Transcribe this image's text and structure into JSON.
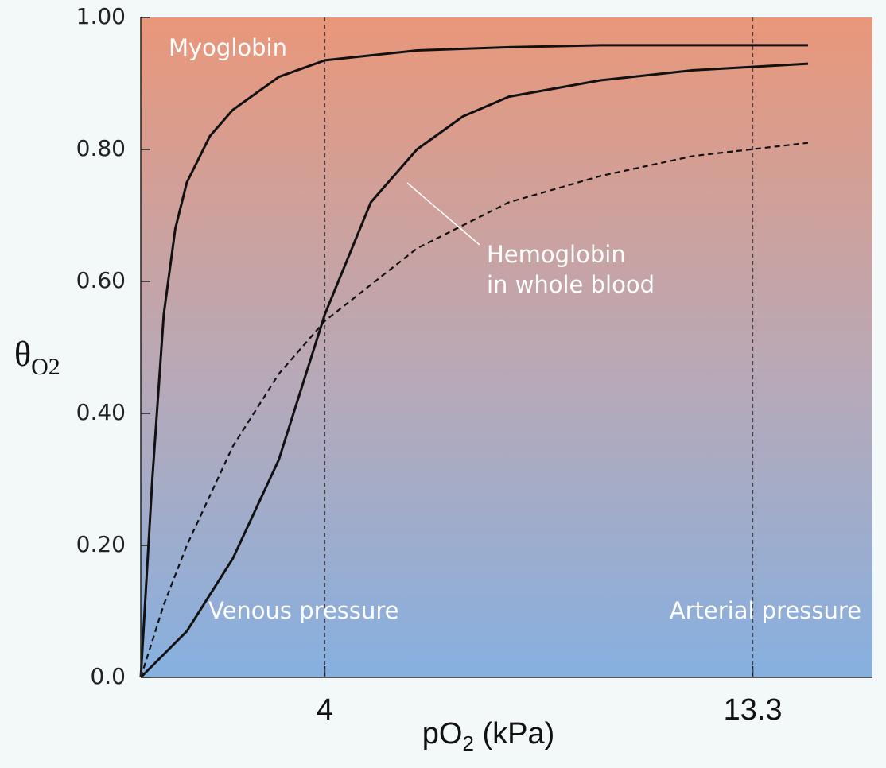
{
  "chart_data": {
    "type": "line",
    "x_label": [
      "pO",
      "2",
      " (kPa)"
    ],
    "y_label": "θ",
    "y_label_sub": "O2",
    "xlim": [
      0,
      15.9
    ],
    "ylim": [
      0,
      1.0
    ],
    "xticks": [
      4,
      13.3
    ],
    "yticks": [
      {
        "value": 0,
        "label": "0.0"
      },
      {
        "value": 0.2,
        "label": "0.20"
      },
      {
        "value": 0.4,
        "label": "0.40"
      },
      {
        "value": 0.6,
        "label": "0.60"
      },
      {
        "value": 0.8,
        "label": "0.80"
      },
      {
        "value": 1.0,
        "label": "1.00"
      }
    ],
    "vlines": [
      {
        "x": 4,
        "label": "Venous pressure"
      },
      {
        "x": 13.3,
        "label": "Arterial pressure"
      }
    ],
    "series": [
      {
        "name": "Myoglobin",
        "color": "#111111",
        "dash": false,
        "x": [
          0,
          0.25,
          0.5,
          0.75,
          1,
          1.5,
          2,
          3,
          4,
          6,
          8,
          10,
          12,
          14.5
        ],
        "values": [
          0,
          0.3,
          0.55,
          0.68,
          0.75,
          0.82,
          0.86,
          0.91,
          0.935,
          0.95,
          0.955,
          0.958,
          0.958,
          0.958
        ]
      },
      {
        "name": [
          "Hemoglobin",
          "in whole blood"
        ],
        "color": "#111111",
        "dash": false,
        "x": [
          0,
          1,
          2,
          3,
          4,
          5,
          6,
          7,
          8,
          10,
          12,
          14.5
        ],
        "values": [
          0,
          0.07,
          0.18,
          0.33,
          0.55,
          0.72,
          0.8,
          0.85,
          0.88,
          0.905,
          0.92,
          0.93
        ]
      },
      {
        "color": "#111111",
        "dash": true,
        "x": [
          0,
          0.5,
          1,
          2,
          3,
          4,
          6,
          8,
          10,
          12,
          14.5
        ],
        "values": [
          0,
          0.11,
          0.2,
          0.35,
          0.46,
          0.54,
          0.65,
          0.72,
          0.76,
          0.79,
          0.81
        ]
      }
    ]
  }
}
